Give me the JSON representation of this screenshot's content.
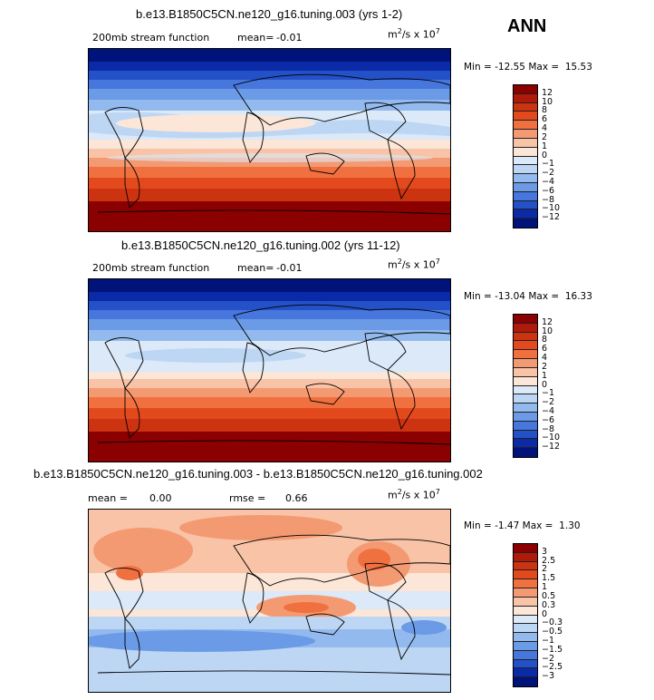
{
  "season": "ANN",
  "units_base": "m",
  "units_exp": "2",
  "units_mid": "/s x 10",
  "units_exp2": "7",
  "panels": [
    {
      "title": "b.e13.B1850C5CN.ne120_g16.tuning.003 (yrs 1-2)",
      "subtitle": "200mb stream function",
      "mean_label": "mean=",
      "mean_value": "-0.01",
      "min_label": "Min =",
      "min_value": "-12.55",
      "max_label": "Max =",
      "max_value": "15.53",
      "levels": [
        "12",
        "10",
        "8",
        "6",
        "4",
        "2",
        "1",
        "0",
        "−1",
        "−2",
        "−4",
        "−6",
        "−8",
        "−10",
        "−12"
      ]
    },
    {
      "title": "b.e13.B1850C5CN.ne120_g16.tuning.002 (yrs 11-12)",
      "subtitle": "200mb stream function",
      "mean_label": "mean=",
      "mean_value": "-0.01",
      "min_label": "Min =",
      "min_value": "-13.04",
      "max_label": "Max =",
      "max_value": "16.33",
      "levels": [
        "12",
        "10",
        "8",
        "6",
        "4",
        "2",
        "1",
        "0",
        "−1",
        "−2",
        "−4",
        "−6",
        "−8",
        "−10",
        "−12"
      ]
    },
    {
      "title": "b.e13.B1850C5CN.ne120_g16.tuning.003 - b.e13.B1850C5CN.ne120_g16.tuning.002",
      "mean_label": "mean =",
      "mean_value": "0.00",
      "rmse_label": "rmse =",
      "rmse_value": "0.66",
      "min_label": "Min =",
      "min_value": "-1.47",
      "max_label": "Max =",
      "max_value": "1.30",
      "levels": [
        "3",
        "2.5",
        "2",
        "1.5",
        "1",
        "0.5",
        "0.3",
        "0",
        "−0.3",
        "−0.5",
        "−1",
        "−1.5",
        "−2",
        "−2.5",
        "−3"
      ]
    }
  ],
  "colors": {
    "scale": [
      "#8b0000",
      "#b01a0a",
      "#cc3311",
      "#e24a1e",
      "#f0703f",
      "#f49a72",
      "#f8c3a6",
      "#fbe6d8",
      "#dbe9f8",
      "#bcd6f4",
      "#93baee",
      "#6b9ae6",
      "#4776dc",
      "#2450c8",
      "#0a2aa8",
      "#00137a"
    ]
  }
}
